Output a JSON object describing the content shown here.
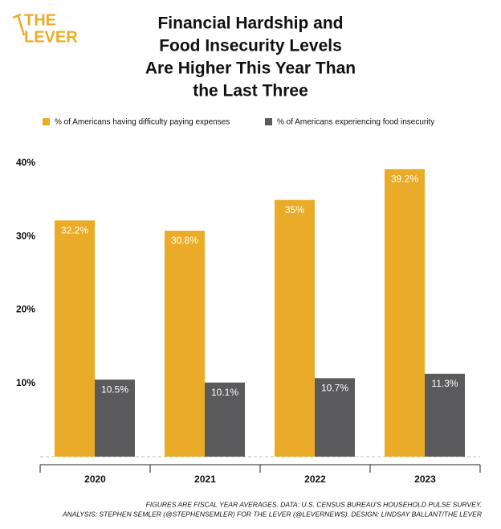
{
  "logo": [
    "THE",
    "LEVER"
  ],
  "chart_data": {
    "type": "bar",
    "title": [
      "Financial Hardship and",
      "Food Insecurity Levels",
      "Are Higher This Year Than",
      "the Last Three"
    ],
    "categories": [
      "2020",
      "2021",
      "2022",
      "2023"
    ],
    "series": [
      {
        "name": "% of Americans having difficulty paying expenses",
        "color": "#eaac28",
        "values": [
          32.2,
          30.8,
          35,
          39.2
        ],
        "value_labels": [
          "32.2%",
          "30.8%",
          "35%",
          "39.2%"
        ]
      },
      {
        "name": "% of Americans experiencing food insecurity",
        "color": "#5a5a5c",
        "values": [
          10.5,
          10.1,
          10.7,
          11.3
        ],
        "value_labels": [
          "10.5%",
          "10.1%",
          "10.7%",
          "11.3%"
        ]
      }
    ],
    "ylim": [
      0,
      40
    ],
    "yticks": [
      {
        "value": 10,
        "label": "10%"
      },
      {
        "value": 20,
        "label": "20%"
      },
      {
        "value": 30,
        "label": "30%"
      },
      {
        "value": 40,
        "label": "40%"
      }
    ],
    "notes": [
      "FIGURES ARE FISCAL YEAR AVERAGES. DATA: U.S. CENSUS BUREAU'S HOUSEHOLD PULSE SURVEY.",
      "ANALYSIS: STEPHEN SEMLER (@STEPHENSEMLER) FOR THE LEVER (@LEVERNEWS). DESIGN: LINDSAY BALLANT/THE LEVER"
    ]
  }
}
